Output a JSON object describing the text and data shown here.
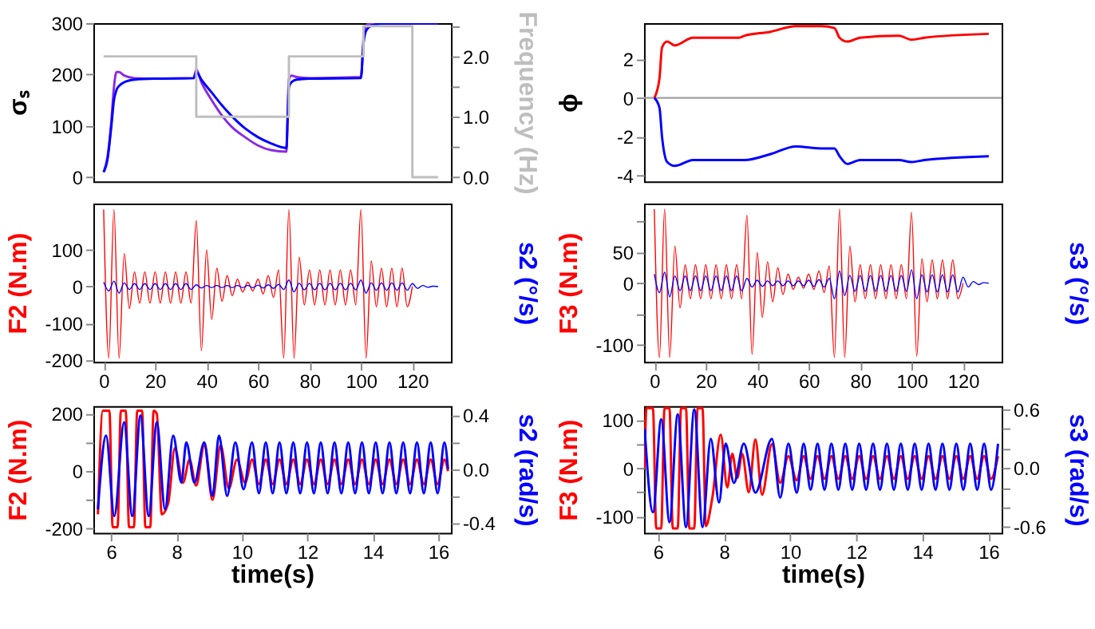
{
  "chart_data": [
    {
      "type": "line",
      "ylabel": "σₛ",
      "y2label": "Frequency (Hz)",
      "tick_labels": "y",
      "xlim": [
        -4,
        135
      ],
      "xticks": [
        0,
        20,
        40,
        60,
        80,
        100,
        120
      ],
      "ylim": [
        -8,
        300
      ],
      "yticks": [
        0,
        100,
        200,
        300
      ],
      "y2lim": [
        -0.07,
        2.55
      ],
      "y2ticks": [
        {
          "value": 0,
          "label": "0.0"
        },
        {
          "value": 0.5,
          "label": null
        },
        {
          "value": 1,
          "label": "1.0"
        },
        {
          "value": 1.5,
          "label": null
        },
        {
          "value": 2,
          "label": "2.0"
        },
        {
          "value": 2.5,
          "label": null
        }
      ],
      "series": [
        {
          "color": "#8a2be2",
          "x": [
            0,
            1.5,
            3,
            4,
            5,
            6,
            8,
            12,
            20,
            35,
            36,
            38,
            42,
            46,
            50,
            55,
            60,
            65,
            71,
            72,
            73,
            75,
            80,
            100,
            101,
            102,
            104,
            110,
            130
          ],
          "values": [
            10,
            40,
            110,
            175,
            205,
            205,
            198,
            193,
            192,
            193,
            210,
            185,
            150,
            120,
            97,
            78,
            62,
            53,
            50,
            190,
            198,
            195,
            193,
            195,
            270,
            295,
            300,
            300,
            300
          ]
        },
        {
          "color": "#0000ff",
          "x": [
            0,
            1.5,
            3,
            4,
            5,
            6,
            8,
            12,
            20,
            35,
            36,
            38,
            42,
            46,
            50,
            55,
            60,
            65,
            71,
            72,
            73,
            75,
            80,
            100,
            101,
            102,
            104,
            110,
            130
          ],
          "values": [
            10,
            35,
            100,
            150,
            170,
            178,
            185,
            190,
            192,
            193,
            205,
            190,
            165,
            140,
            118,
            95,
            78,
            66,
            57,
            175,
            185,
            190,
            192,
            193,
            260,
            285,
            295,
            300,
            300
          ]
        },
        {
          "type": "step",
          "axis": "y2",
          "color": "#bebebe",
          "x": [
            0,
            36,
            72,
            101,
            120,
            130
          ],
          "values": [
            2.0,
            1.0,
            2.0,
            2.5,
            0.0,
            0.0
          ]
        }
      ]
    },
    {
      "type": "line",
      "ylabel": "ϕ",
      "tick_labels": "y",
      "xlim": [
        -4,
        135
      ],
      "xticks": [
        0,
        20,
        40,
        60,
        80,
        100,
        120
      ],
      "ylim": [
        -4.3,
        3.85
      ],
      "yticks": [
        -4,
        -2,
        0,
        2
      ],
      "ref_lines": [
        {
          "axis": "y",
          "value": 0,
          "color": "#a0a0a0"
        }
      ],
      "series": [
        {
          "color": "#ff0000",
          "x": [
            0,
            2,
            3,
            5,
            8,
            15,
            33,
            35,
            45,
            55,
            65,
            70,
            72,
            75,
            80,
            95,
            100,
            105,
            130
          ],
          "values": [
            0,
            1,
            2.6,
            2.9,
            2.7,
            3.1,
            3.1,
            3.2,
            3.4,
            3.7,
            3.7,
            3.6,
            3.1,
            2.9,
            3.1,
            3.2,
            3.0,
            3.1,
            3.3
          ]
        },
        {
          "color": "#0000ff",
          "x": [
            0,
            2,
            3,
            5,
            8,
            15,
            33,
            35,
            45,
            55,
            65,
            70,
            72,
            75,
            80,
            95,
            100,
            105,
            130
          ],
          "values": [
            0,
            -0.5,
            -2,
            -3.3,
            -3.5,
            -3.2,
            -3.2,
            -3.2,
            -2.9,
            -2.5,
            -2.6,
            -2.6,
            -3.0,
            -3.4,
            -3.2,
            -3.2,
            -3.3,
            -3.2,
            -3.0
          ]
        }
      ]
    },
    {
      "type": "line",
      "ylabel": "F2 (N.m)",
      "y2label": "s2 (°/s)",
      "xlim": [
        -4,
        135
      ],
      "xticks": [
        0,
        20,
        40,
        60,
        80,
        100,
        120
      ],
      "ylim": [
        -205,
        226
      ],
      "yticks": [
        -200,
        -100,
        0,
        100
      ],
      "series": [
        {
          "color": "#ff0000",
          "x": [
            0,
            2,
            4,
            6,
            8,
            10,
            12,
            14,
            16,
            18,
            20,
            22,
            24,
            26,
            28,
            30,
            32,
            34,
            36,
            38,
            40,
            42,
            44,
            46,
            48,
            50,
            52,
            54,
            56,
            58,
            60,
            62,
            64,
            66,
            68,
            70,
            72,
            74,
            76,
            78,
            80,
            82,
            84,
            86,
            88,
            90,
            92,
            94,
            96,
            98,
            100,
            102,
            104,
            106,
            108,
            110,
            112,
            114,
            116,
            118,
            120
          ],
          "values": [
            210,
            -195,
            210,
            -195,
            90,
            -60,
            40,
            -45,
            40,
            -45,
            40,
            -45,
            40,
            -45,
            40,
            -45,
            40,
            -45,
            180,
            -175,
            100,
            -90,
            50,
            -40,
            30,
            -25,
            20,
            -15,
            12,
            -12,
            20,
            -20,
            30,
            -30,
            45,
            -195,
            210,
            -195,
            80,
            -50,
            45,
            -50,
            45,
            -50,
            45,
            -50,
            45,
            -50,
            45,
            -50,
            210,
            -195,
            70,
            -55,
            50,
            -55,
            50,
            -55,
            50,
            -55,
            0
          ]
        },
        {
          "color": "#0000ff",
          "x": [
            0,
            2,
            4,
            6,
            8,
            10,
            12,
            14,
            16,
            18,
            20,
            22,
            24,
            26,
            28,
            30,
            32,
            34,
            36,
            38,
            40,
            42,
            44,
            46,
            48,
            50,
            52,
            54,
            56,
            58,
            60,
            62,
            64,
            66,
            68,
            70,
            72,
            74,
            76,
            78,
            80,
            82,
            84,
            86,
            88,
            90,
            92,
            94,
            96,
            98,
            100,
            102,
            104,
            106,
            108,
            110,
            112,
            114,
            116,
            118,
            120,
            122,
            124,
            126,
            128,
            130
          ],
          "values": [
            12,
            -12,
            15,
            -18,
            10,
            -8,
            8,
            -8,
            8,
            -8,
            8,
            -8,
            8,
            -8,
            8,
            -8,
            8,
            -8,
            5,
            -4,
            3,
            -3,
            3,
            -3,
            3,
            -3,
            3,
            -3,
            3,
            -3,
            4,
            -4,
            5,
            -5,
            6,
            -8,
            18,
            -15,
            9,
            -9,
            9,
            -9,
            9,
            -9,
            9,
            -9,
            9,
            -9,
            9,
            -9,
            18,
            -18,
            10,
            -10,
            10,
            -10,
            10,
            -10,
            10,
            -10,
            8,
            -5,
            3,
            -2,
            1,
            0
          ]
        }
      ]
    },
    {
      "type": "line",
      "ylabel": "F3 (N.m)",
      "y2label": "s3 (°/s)",
      "xlim": [
        -4,
        135
      ],
      "xticks": [
        0,
        20,
        40,
        60,
        80,
        100,
        120
      ],
      "ylim": [
        -127,
        129
      ],
      "yticks": [
        -100,
        {
          "value": -50,
          "label": null
        },
        0,
        50,
        {
          "value": 100,
          "label": null
        }
      ],
      "series": [
        {
          "color": "#ff0000",
          "x": [
            0,
            2,
            4,
            6,
            8,
            10,
            12,
            14,
            16,
            18,
            20,
            22,
            24,
            26,
            28,
            30,
            32,
            34,
            36,
            38,
            40,
            42,
            44,
            46,
            48,
            50,
            52,
            54,
            56,
            58,
            60,
            62,
            64,
            66,
            68,
            70,
            72,
            74,
            76,
            78,
            80,
            82,
            84,
            86,
            88,
            90,
            92,
            94,
            96,
            98,
            100,
            102,
            104,
            106,
            108,
            110,
            112,
            114,
            116,
            118,
            120
          ],
          "values": [
            120,
            -120,
            120,
            -120,
            60,
            -40,
            30,
            -25,
            30,
            -25,
            30,
            -25,
            30,
            -25,
            30,
            -25,
            30,
            -25,
            110,
            -115,
            50,
            -55,
            35,
            -30,
            25,
            -18,
            15,
            -10,
            10,
            -8,
            15,
            -10,
            20,
            -15,
            28,
            -120,
            120,
            -120,
            60,
            -30,
            30,
            -25,
            30,
            -25,
            30,
            -25,
            30,
            -25,
            30,
            -25,
            115,
            -118,
            40,
            -30,
            38,
            -25,
            38,
            -25,
            38,
            -25,
            0
          ]
        },
        {
          "color": "#0000ff",
          "x": [
            0,
            2,
            4,
            6,
            8,
            10,
            12,
            14,
            16,
            18,
            20,
            22,
            24,
            26,
            28,
            30,
            32,
            34,
            36,
            38,
            40,
            42,
            44,
            46,
            48,
            50,
            52,
            54,
            56,
            58,
            60,
            62,
            64,
            66,
            68,
            70,
            72,
            74,
            76,
            78,
            80,
            82,
            84,
            86,
            88,
            90,
            92,
            94,
            96,
            98,
            100,
            102,
            104,
            106,
            108,
            110,
            112,
            114,
            116,
            118,
            120,
            122,
            124,
            126,
            128,
            130
          ],
          "values": [
            15,
            -15,
            18,
            -22,
            12,
            -12,
            12,
            -12,
            12,
            -12,
            12,
            -12,
            12,
            -12,
            12,
            -12,
            12,
            -12,
            8,
            -6,
            5,
            -5,
            4,
            -4,
            4,
            -4,
            4,
            -4,
            4,
            -4,
            5,
            -5,
            6,
            -6,
            8,
            -25,
            20,
            -20,
            13,
            -13,
            13,
            -13,
            13,
            -13,
            13,
            -13,
            13,
            -13,
            13,
            -13,
            22,
            -25,
            14,
            -14,
            14,
            -14,
            14,
            -14,
            14,
            -14,
            10,
            -6,
            3,
            -2,
            1,
            0
          ]
        }
      ]
    },
    {
      "type": "line",
      "xlabel": "time(s)",
      "ylabel": "F2 (N.m)",
      "y2label": "s2 (rad/s)",
      "xlim": [
        5.46,
        16.39
      ],
      "xticks": [
        6,
        8,
        10,
        12,
        14,
        16
      ],
      "ylim": [
        -214,
        226
      ],
      "yticks": [
        -200,
        {
          "value": -100,
          "label": null
        },
        0,
        {
          "value": 100,
          "label": null
        },
        200
      ],
      "y2lim": [
        -0.474,
        0.47
      ],
      "y2ticks": [
        -0.4,
        {
          "value": -0.2,
          "label": null
        },
        {
          "value": 0,
          "label": "0.0"
        },
        {
          "value": 0.2,
          "label": null
        },
        0.4
      ],
      "series": [
        {
          "color": "#ff0000",
          "x": [
            5.6,
            5.75,
            5.95,
            6.05,
            6.2,
            6.3,
            6.45,
            6.55,
            6.7,
            6.8,
            6.95,
            7.05,
            7.2,
            7.3,
            7.4,
            7.55,
            7.75,
            7.95,
            8.2,
            8.4,
            8.6,
            8.85,
            9.1,
            9.35,
            9.6,
            9.85,
            10.1,
            10.31,
            10.52,
            10.73,
            10.94,
            11.15,
            11.36,
            11.57,
            11.78,
            11.99,
            12.2,
            12.41,
            12.62,
            12.83,
            13.04,
            13.25,
            13.46,
            13.67,
            13.88,
            14.09,
            14.3,
            14.51,
            14.72,
            14.93,
            15.14,
            15.35,
            15.56,
            15.77,
            15.98,
            16.19,
            16.3
          ],
          "values": [
            -150,
            210,
            210,
            -195,
            -195,
            210,
            210,
            -195,
            -195,
            210,
            210,
            -195,
            -195,
            210,
            200,
            -150,
            -110,
            80,
            -40,
            40,
            -50,
            90,
            -100,
            90,
            -60,
            40,
            -40,
            40,
            -45,
            40,
            -45,
            40,
            -45,
            40,
            -45,
            40,
            -45,
            40,
            -45,
            40,
            -45,
            40,
            -45,
            40,
            -45,
            40,
            -45,
            40,
            -45,
            40,
            -45,
            40,
            -45,
            40,
            -45,
            40,
            0
          ]
        },
        {
          "axis": "y2",
          "color": "#0000ff",
          "x": [
            5.6,
            5.85,
            6.1,
            6.4,
            6.65,
            6.9,
            7.15,
            7.4,
            7.65,
            7.9,
            8.15,
            8.3,
            8.55,
            8.85,
            9.1,
            9.3,
            9.55,
            9.8,
            10.05,
            10.31,
            10.52,
            10.73,
            10.94,
            11.15,
            11.36,
            11.57,
            11.78,
            11.99,
            12.2,
            12.41,
            12.62,
            12.83,
            13.04,
            13.25,
            13.46,
            13.67,
            13.88,
            14.09,
            14.3,
            14.51,
            14.72,
            14.93,
            15.14,
            15.35,
            15.56,
            15.77,
            15.98,
            16.19,
            16.3
          ],
          "values": [
            -0.3,
            0.25,
            -0.35,
            0.35,
            -0.35,
            0.4,
            -0.35,
            0.35,
            -0.3,
            0.25,
            -0.1,
            0.2,
            -0.1,
            0.2,
            -0.2,
            0.25,
            -0.2,
            0.2,
            -0.15,
            0.2,
            -0.18,
            0.2,
            -0.18,
            0.2,
            -0.18,
            0.2,
            -0.18,
            0.2,
            -0.18,
            0.2,
            -0.18,
            0.2,
            -0.18,
            0.2,
            -0.18,
            0.2,
            -0.18,
            0.2,
            -0.18,
            0.2,
            -0.18,
            0.2,
            -0.18,
            0.2,
            -0.18,
            0.2,
            -0.18,
            0.2,
            0
          ]
        }
      ]
    },
    {
      "type": "line",
      "xlabel": "time(s)",
      "ylabel": "F3 (N.m)",
      "y2label": "s3 (rad/s)",
      "xlim": [
        5.58,
        16.4
      ],
      "xticks": [
        6,
        8,
        10,
        12,
        14,
        16
      ],
      "ylim": [
        -134,
        129
      ],
      "yticks": [
        -100,
        {
          "value": -50,
          "label": null
        },
        0,
        {
          "value": 50,
          "label": null
        },
        100
      ],
      "y2lim": [
        -0.658,
        0.633
      ],
      "y2ticks": [
        {
          "value": -0.6,
          "label": "-0.6"
        },
        {
          "value": -0.4,
          "label": null
        },
        {
          "value": -0.2,
          "label": null
        },
        {
          "value": 0,
          "label": "0.0"
        },
        {
          "value": 0.2,
          "label": null
        },
        {
          "value": 0.4,
          "label": null
        },
        {
          "value": 0.6,
          "label": "0.6"
        }
      ],
      "series": [
        {
          "color": "#ff0000",
          "x": [
            5.6,
            5.65,
            5.85,
            5.95,
            6.1,
            6.2,
            6.35,
            6.45,
            6.6,
            6.7,
            6.85,
            6.95,
            7.1,
            7.2,
            7.35,
            7.45,
            7.65,
            7.9,
            8.1,
            8.25,
            8.4,
            8.55,
            8.75,
            8.95,
            9.15,
            9.45,
            9.7,
            9.95,
            10.2,
            10.41,
            10.62,
            10.83,
            11.04,
            11.25,
            11.46,
            11.67,
            11.88,
            12.09,
            12.3,
            12.51,
            12.72,
            12.93,
            13.14,
            13.35,
            13.56,
            13.77,
            13.98,
            14.19,
            14.4,
            14.61,
            14.82,
            15.03,
            15.24,
            15.45,
            15.66,
            15.87,
            16.08,
            16.29
          ],
          "values": [
            0,
            125,
            125,
            -125,
            -125,
            125,
            125,
            -125,
            -125,
            125,
            125,
            -125,
            -125,
            125,
            125,
            -120,
            -60,
            70,
            -40,
            30,
            -20,
            30,
            -50,
            60,
            -55,
            50,
            -30,
            25,
            -25,
            25,
            -22,
            25,
            -22,
            25,
            -22,
            25,
            -22,
            25,
            -22,
            25,
            -22,
            25,
            -22,
            25,
            -22,
            25,
            -22,
            25,
            -22,
            25,
            -22,
            25,
            -22,
            25,
            -22,
            25,
            -22,
            25
          ]
        },
        {
          "axis": "y2",
          "color": "#0000ff",
          "x": [
            5.6,
            5.85,
            6.1,
            6.35,
            6.6,
            6.85,
            7.1,
            7.35,
            7.6,
            7.85,
            8.05,
            8.3,
            8.6,
            8.95,
            9.45,
            9.7,
            9.95,
            10.2,
            10.41,
            10.62,
            10.83,
            11.04,
            11.25,
            11.46,
            11.67,
            11.88,
            12.09,
            12.3,
            12.51,
            12.72,
            12.93,
            13.14,
            13.35,
            13.56,
            13.77,
            13.98,
            14.19,
            14.4,
            14.61,
            14.82,
            15.03,
            15.24,
            15.45,
            15.66,
            15.87,
            16.08,
            16.29
          ],
          "values": [
            0.4,
            -0.45,
            0.5,
            -0.55,
            0.55,
            -0.6,
            0.6,
            -0.6,
            0.3,
            -0.35,
            0.25,
            -0.15,
            0.25,
            -0.25,
            0.3,
            -0.3,
            0.25,
            -0.25,
            0.25,
            -0.22,
            0.25,
            -0.22,
            0.25,
            -0.22,
            0.25,
            -0.22,
            0.25,
            -0.22,
            0.25,
            -0.22,
            0.25,
            -0.22,
            0.25,
            -0.22,
            0.25,
            -0.22,
            0.25,
            -0.22,
            0.25,
            -0.22,
            0.25,
            -0.22,
            0.25,
            -0.22,
            0.25,
            -0.22,
            0.25
          ]
        }
      ]
    }
  ]
}
